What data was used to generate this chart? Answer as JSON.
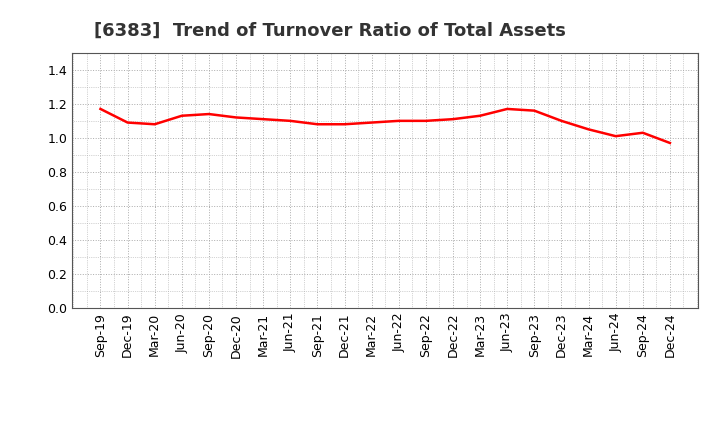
{
  "title": "[6383]  Trend of Turnover Ratio of Total Assets",
  "title_fontsize": 13,
  "title_color": "#333333",
  "line_color": "#FF0000",
  "line_width": 1.8,
  "background_color": "#FFFFFF",
  "grid_color": "#AAAAAA",
  "grid_style": ":",
  "ylim": [
    0.0,
    1.5
  ],
  "yticks": [
    0.0,
    0.2,
    0.4,
    0.6,
    0.8,
    1.0,
    1.2,
    1.4
  ],
  "labels": [
    "Sep-19",
    "Dec-19",
    "Mar-20",
    "Jun-20",
    "Sep-20",
    "Dec-20",
    "Mar-21",
    "Jun-21",
    "Sep-21",
    "Dec-21",
    "Mar-22",
    "Jun-22",
    "Sep-22",
    "Dec-22",
    "Mar-23",
    "Jun-23",
    "Sep-23",
    "Dec-23",
    "Mar-24",
    "Jun-24",
    "Sep-24",
    "Dec-24"
  ],
  "values": [
    1.17,
    1.09,
    1.08,
    1.13,
    1.14,
    1.12,
    1.11,
    1.1,
    1.08,
    1.08,
    1.09,
    1.1,
    1.1,
    1.11,
    1.13,
    1.17,
    1.16,
    1.1,
    1.05,
    1.01,
    1.03,
    0.97
  ],
  "tick_fontsize": 9,
  "spine_color": "#555555"
}
